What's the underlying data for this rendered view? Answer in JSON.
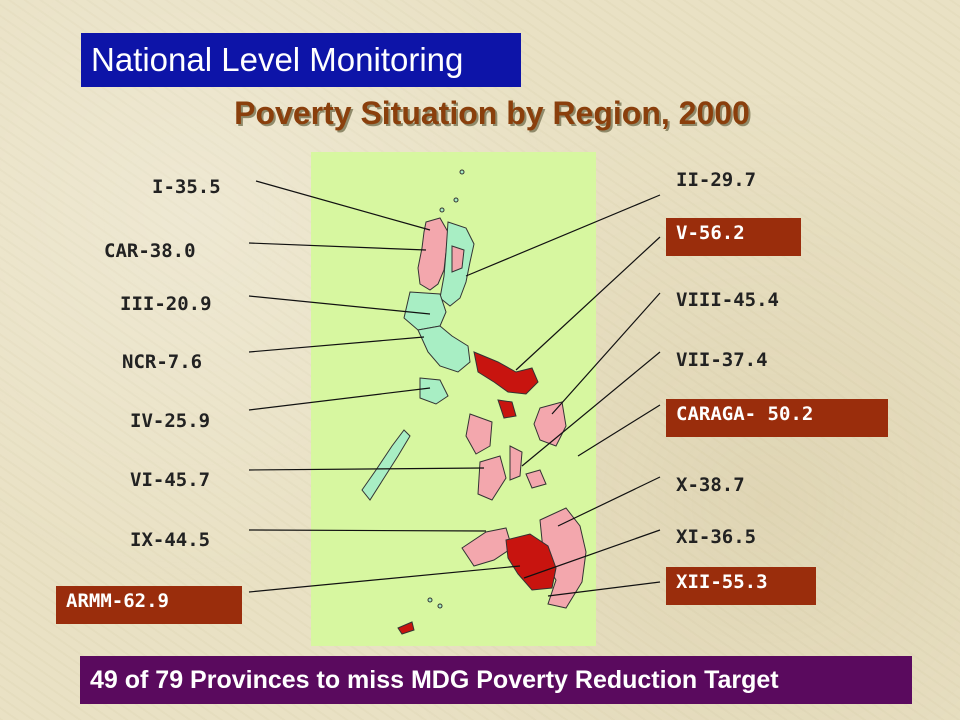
{
  "header": {
    "label": "National Level Monitoring",
    "bg_color": "#0d14a8"
  },
  "title": "Poverty Situation by Region, 2000",
  "map": {
    "background_color": "#d7f7a0",
    "legend_colors": {
      "low": "#a8eec4",
      "medium": "#f3a7ad",
      "high": "#c8140f"
    }
  },
  "regions_left": [
    {
      "label": "I-35.5",
      "highlighted": false
    },
    {
      "label": "CAR-38.0",
      "highlighted": false
    },
    {
      "label": "III-20.9",
      "highlighted": false
    },
    {
      "label": "NCR-7.6",
      "highlighted": false
    },
    {
      "label": "IV-25.9",
      "highlighted": false
    },
    {
      "label": "VI-45.7",
      "highlighted": false
    },
    {
      "label": "IX-44.5",
      "highlighted": false
    },
    {
      "label": "ARMM-62.9",
      "highlighted": true
    }
  ],
  "regions_right": [
    {
      "label": "II-29.7",
      "highlighted": false
    },
    {
      "label": "V-56.2",
      "highlighted": true
    },
    {
      "label": "VIII-45.4",
      "highlighted": false
    },
    {
      "label": "VII-37.4",
      "highlighted": false
    },
    {
      "label": "CARAGA- 50.2",
      "highlighted": true
    },
    {
      "label": "X-38.7",
      "highlighted": false
    },
    {
      "label": "XI-36.5",
      "highlighted": false
    },
    {
      "label": "XII-55.3",
      "highlighted": true
    }
  ],
  "footer": {
    "label": "49 of 79 Provinces to miss MDG Poverty Reduction Target",
    "bg_color": "#5a0a5e"
  }
}
